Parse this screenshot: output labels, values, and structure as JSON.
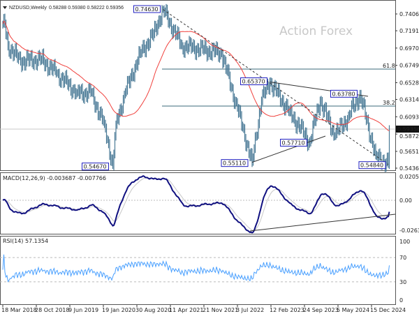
{
  "header": {
    "symbol": "NZDUSD,Weekly",
    "ohlc": "0.58288 0.59380 0.58222 0.59356"
  },
  "watermark": "Action Forex",
  "colors": {
    "bars": "#4a7a96",
    "ma": "#f0403c",
    "macd": "#101080",
    "signal": "#c8c8c8",
    "rsi": "#4aa0ff",
    "label_box": "#2020c0",
    "grid_dash": "#bbbbbb",
    "fib": "#3a6a7a"
  },
  "chart_data": [
    {
      "type": "bar",
      "title": "NZDUSD,Weekly",
      "price_axis_ticks": [
        "0.74060",
        "0.71915",
        "0.69705",
        "0.67495",
        "0.65285",
        "0.63140",
        "0.60930",
        "0.58720",
        "0.56510",
        "0.54365"
      ],
      "ylim": [
        0.54365,
        0.7406
      ],
      "current_price": "0.59356",
      "x_ticks": [
        "18 Mar 2018",
        "28 Oct 2018",
        "9 Jun 2019",
        "19 Jan 2020",
        "30 Aug 2020",
        "11 Apr 2021",
        "21 Nov 2021",
        "3 Jul 2022",
        "12 Feb 2023",
        "24 Sep 2023",
        "5 May 2024",
        "15 Dec 2024"
      ],
      "price_path": [
        [
          "2018-03-18",
          0.728
        ],
        [
          "2018-03-25",
          0.735
        ],
        [
          "2018-04-22",
          0.7
        ],
        [
          "2018-07-15",
          0.68
        ],
        [
          "2018-12-02",
          0.683
        ],
        [
          "2019-03-10",
          0.665
        ],
        [
          "2019-07-28",
          0.64
        ],
        [
          "2019-10-27",
          0.64
        ],
        [
          "2020-01-26",
          0.6
        ],
        [
          "2020-03-22",
          0.5467
        ],
        [
          "2020-04-12",
          0.6
        ],
        [
          "2020-06-14",
          0.64
        ],
        [
          "2020-09-20",
          0.69
        ],
        [
          "2020-12-20",
          0.715
        ],
        [
          "2021-02-21",
          0.7463
        ],
        [
          "2021-06-27",
          0.7
        ],
        [
          "2021-11-21",
          0.695
        ],
        [
          "2022-03-20",
          0.69
        ],
        [
          "2022-07-03",
          0.62
        ],
        [
          "2022-10-09",
          0.5511
        ],
        [
          "2022-12-11",
          0.63
        ],
        [
          "2023-02-05",
          0.6537
        ],
        [
          "2023-06-18",
          0.615
        ],
        [
          "2023-10-29",
          0.5771
        ],
        [
          "2024-01-07",
          0.63
        ],
        [
          "2024-04-14",
          0.585
        ],
        [
          "2024-07-14",
          0.61
        ],
        [
          "2024-09-29",
          0.6378
        ],
        [
          "2025-01-12",
          0.56
        ],
        [
          "2025-04-06",
          0.5484
        ],
        [
          "2025-04-13",
          0.59356
        ]
      ],
      "annotations": [
        {
          "text": "0.74630",
          "date": "2021-02-21",
          "price": 0.7463
        },
        {
          "text": "0.54670",
          "date": "2020-03-22",
          "price": 0.5467
        },
        {
          "text": "0.65370",
          "date": "2023-02-05",
          "price": 0.6537
        },
        {
          "text": "0.63780",
          "date": "2024-09-29",
          "price": 0.6378
        },
        {
          "text": "0.57710",
          "date": "2023-10-29",
          "price": 0.5771
        },
        {
          "text": "0.55110",
          "date": "2022-10-09",
          "price": 0.5511
        },
        {
          "text": "0.54840",
          "date": "2025-04-06",
          "price": 0.5484
        }
      ],
      "fib_levels": [
        {
          "label": "61.8",
          "price": 0.6702
        },
        {
          "label": "38.2",
          "price": 0.623
        }
      ]
    },
    {
      "type": "line",
      "title": "MACD(12,26,9) -0.003687 -0.007766",
      "ticks": [
        "0.020555",
        "0.00",
        "-0.026356"
      ],
      "ylim": [
        -0.026356,
        0.020555
      ],
      "macd": -0.003687,
      "signal": -0.007766
    },
    {
      "type": "line",
      "title": "RSI(14) 57.1354",
      "ticks": [
        "100",
        "70",
        "30",
        "0"
      ],
      "ylim": [
        0,
        100
      ],
      "levels": [
        70,
        30
      ],
      "value": 57.1354
    }
  ]
}
